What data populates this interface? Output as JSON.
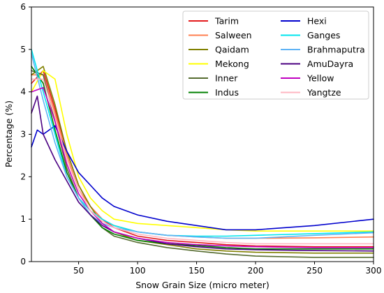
{
  "chart_data": {
    "type": "line",
    "title": "",
    "xlabel": "Snow Grain Size (micro meter)",
    "ylabel": "Percentage (%)",
    "xlim": [
      10,
      300
    ],
    "ylim": [
      0,
      6
    ],
    "xticks": [
      50,
      100,
      150,
      200,
      250,
      300
    ],
    "yticks": [
      0,
      1,
      2,
      3,
      4,
      5,
      6
    ],
    "grid": false,
    "legend_position": "top-right",
    "legend_columns": 2,
    "series": [
      {
        "name": "Tarim",
        "color": "#e31a1c",
        "points": [
          [
            10,
            4.2
          ],
          [
            20,
            4.5
          ],
          [
            30,
            3.6
          ],
          [
            40,
            2.6
          ],
          [
            50,
            1.8
          ],
          [
            60,
            1.3
          ],
          [
            70,
            1.0
          ],
          [
            80,
            0.8
          ],
          [
            100,
            0.6
          ],
          [
            125,
            0.5
          ],
          [
            150,
            0.45
          ],
          [
            175,
            0.4
          ],
          [
            200,
            0.37
          ],
          [
            250,
            0.35
          ],
          [
            300,
            0.35
          ]
        ]
      },
      {
        "name": "Salween",
        "color": "#ff7f50",
        "points": [
          [
            10,
            4.4
          ],
          [
            20,
            4.4
          ],
          [
            30,
            3.5
          ],
          [
            40,
            2.5
          ],
          [
            50,
            1.7
          ],
          [
            60,
            1.3
          ],
          [
            70,
            1.0
          ],
          [
            80,
            0.85
          ],
          [
            100,
            0.7
          ],
          [
            125,
            0.62
          ],
          [
            150,
            0.58
          ],
          [
            175,
            0.55
          ],
          [
            200,
            0.55
          ],
          [
            250,
            0.56
          ],
          [
            300,
            0.58
          ]
        ]
      },
      {
        "name": "Qaidam",
        "color": "#808000",
        "points": [
          [
            10,
            4.4
          ],
          [
            20,
            4.6
          ],
          [
            30,
            3.7
          ],
          [
            40,
            2.6
          ],
          [
            50,
            1.8
          ],
          [
            60,
            1.3
          ],
          [
            70,
            0.9
          ],
          [
            80,
            0.7
          ],
          [
            100,
            0.5
          ],
          [
            125,
            0.4
          ],
          [
            150,
            0.3
          ],
          [
            175,
            0.25
          ],
          [
            200,
            0.22
          ],
          [
            250,
            0.2
          ],
          [
            300,
            0.2
          ]
        ]
      },
      {
        "name": "Mekong",
        "color": "#ffff00",
        "points": [
          [
            10,
            4.0
          ],
          [
            20,
            4.5
          ],
          [
            30,
            4.3
          ],
          [
            40,
            3.0
          ],
          [
            50,
            2.0
          ],
          [
            60,
            1.5
          ],
          [
            70,
            1.2
          ],
          [
            80,
            1.0
          ],
          [
            100,
            0.9
          ],
          [
            125,
            0.85
          ],
          [
            150,
            0.8
          ],
          [
            175,
            0.75
          ],
          [
            200,
            0.72
          ],
          [
            250,
            0.72
          ],
          [
            300,
            0.72
          ]
        ]
      },
      {
        "name": "Inner",
        "color": "#556b2f",
        "points": [
          [
            10,
            4.5
          ],
          [
            20,
            4.4
          ],
          [
            30,
            3.3
          ],
          [
            40,
            2.2
          ],
          [
            50,
            1.5
          ],
          [
            60,
            1.1
          ],
          [
            70,
            0.8
          ],
          [
            80,
            0.6
          ],
          [
            100,
            0.45
          ],
          [
            125,
            0.33
          ],
          [
            150,
            0.25
          ],
          [
            175,
            0.18
          ],
          [
            200,
            0.13
          ],
          [
            250,
            0.1
          ],
          [
            300,
            0.1
          ]
        ]
      },
      {
        "name": "Indus",
        "color": "#008000",
        "points": [
          [
            10,
            4.6
          ],
          [
            20,
            4.2
          ],
          [
            30,
            3.1
          ],
          [
            40,
            2.1
          ],
          [
            50,
            1.5
          ],
          [
            60,
            1.1
          ],
          [
            70,
            0.8
          ],
          [
            80,
            0.65
          ],
          [
            100,
            0.5
          ],
          [
            125,
            0.42
          ],
          [
            150,
            0.38
          ],
          [
            175,
            0.33
          ],
          [
            200,
            0.3
          ],
          [
            250,
            0.3
          ],
          [
            300,
            0.3
          ]
        ]
      },
      {
        "name": "Hexi",
        "color": "#0000cd",
        "points": [
          [
            10,
            2.7
          ],
          [
            15,
            3.1
          ],
          [
            20,
            3.0
          ],
          [
            30,
            3.2
          ],
          [
            40,
            2.6
          ],
          [
            50,
            2.1
          ],
          [
            60,
            1.8
          ],
          [
            70,
            1.5
          ],
          [
            80,
            1.3
          ],
          [
            100,
            1.1
          ],
          [
            125,
            0.95
          ],
          [
            150,
            0.85
          ],
          [
            175,
            0.75
          ],
          [
            200,
            0.75
          ],
          [
            250,
            0.85
          ],
          [
            300,
            1.0
          ]
        ]
      },
      {
        "name": "Ganges",
        "color": "#00e5ee",
        "points": [
          [
            10,
            5.0
          ],
          [
            20,
            4.0
          ],
          [
            30,
            3.0
          ],
          [
            40,
            2.0
          ],
          [
            50,
            1.5
          ],
          [
            60,
            1.2
          ],
          [
            70,
            1.0
          ],
          [
            80,
            0.85
          ],
          [
            100,
            0.7
          ],
          [
            125,
            0.62
          ],
          [
            150,
            0.6
          ],
          [
            175,
            0.6
          ],
          [
            200,
            0.62
          ],
          [
            250,
            0.66
          ],
          [
            300,
            0.7
          ]
        ]
      },
      {
        "name": "Brahmaputra",
        "color": "#5fb3f5",
        "points": [
          [
            10,
            4.9
          ],
          [
            20,
            3.8
          ],
          [
            30,
            2.8
          ],
          [
            40,
            2.0
          ],
          [
            50,
            1.5
          ],
          [
            60,
            1.1
          ],
          [
            70,
            0.9
          ],
          [
            80,
            0.8
          ],
          [
            100,
            0.7
          ],
          [
            125,
            0.62
          ],
          [
            150,
            0.58
          ],
          [
            175,
            0.55
          ],
          [
            200,
            0.55
          ],
          [
            250,
            0.62
          ],
          [
            300,
            0.68
          ]
        ]
      },
      {
        "name": "AmuDayra",
        "color": "#4b0082",
        "points": [
          [
            10,
            3.5
          ],
          [
            15,
            3.9
          ],
          [
            20,
            3.0
          ],
          [
            30,
            2.4
          ],
          [
            40,
            1.9
          ],
          [
            50,
            1.4
          ],
          [
            60,
            1.1
          ],
          [
            70,
            0.85
          ],
          [
            80,
            0.7
          ],
          [
            100,
            0.55
          ],
          [
            125,
            0.42
          ],
          [
            150,
            0.35
          ],
          [
            175,
            0.3
          ],
          [
            200,
            0.28
          ],
          [
            250,
            0.26
          ],
          [
            300,
            0.25
          ]
        ]
      },
      {
        "name": "Yellow",
        "color": "#c000c0",
        "points": [
          [
            10,
            4.0
          ],
          [
            20,
            4.1
          ],
          [
            30,
            3.3
          ],
          [
            40,
            2.3
          ],
          [
            50,
            1.6
          ],
          [
            60,
            1.2
          ],
          [
            70,
            0.9
          ],
          [
            80,
            0.7
          ],
          [
            100,
            0.55
          ],
          [
            125,
            0.45
          ],
          [
            150,
            0.4
          ],
          [
            175,
            0.37
          ],
          [
            200,
            0.35
          ],
          [
            250,
            0.33
          ],
          [
            300,
            0.33
          ]
        ]
      },
      {
        "name": "Yangtze",
        "color": "#ffb6c1",
        "points": [
          [
            10,
            4.3
          ],
          [
            20,
            4.3
          ],
          [
            30,
            3.4
          ],
          [
            40,
            2.4
          ],
          [
            50,
            1.7
          ],
          [
            60,
            1.2
          ],
          [
            70,
            0.95
          ],
          [
            80,
            0.8
          ],
          [
            100,
            0.65
          ],
          [
            125,
            0.55
          ],
          [
            150,
            0.5
          ],
          [
            175,
            0.45
          ],
          [
            200,
            0.42
          ],
          [
            250,
            0.42
          ],
          [
            300,
            0.42
          ]
        ]
      }
    ]
  }
}
